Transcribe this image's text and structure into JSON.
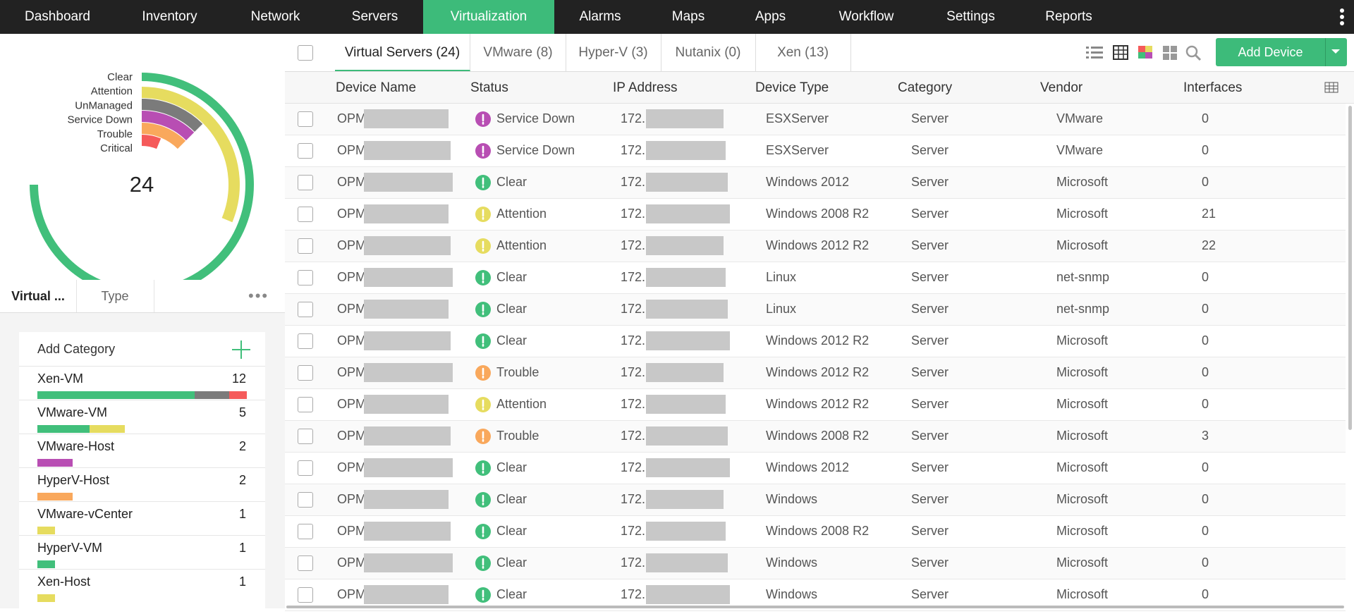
{
  "nav": {
    "items": [
      "Dashboard",
      "Inventory",
      "Network",
      "Servers",
      "Virtualization",
      "Alarms",
      "Maps",
      "Apps",
      "Workflow",
      "Settings",
      "Reports"
    ],
    "active": 4
  },
  "status_summary": {
    "total": 24,
    "items": [
      {
        "label": "Clear",
        "color": "#41bf7b",
        "value": 12
      },
      {
        "label": "Attention",
        "color": "#e6dc5f",
        "value": 5
      },
      {
        "label": "UnManaged",
        "color": "#7b7b7b",
        "value": 2
      },
      {
        "label": "Service Down",
        "color": "#b84eb3",
        "value": 2
      },
      {
        "label": "Trouble",
        "color": "#f9a85c",
        "value": 2
      },
      {
        "label": "Critical",
        "color": "#f55a5a",
        "value": 1
      }
    ]
  },
  "side_tabs": [
    "Virtual ...",
    "Type"
  ],
  "categories": {
    "title": "Add Category",
    "items": [
      {
        "name": "Xen-VM",
        "count": 12,
        "segments": [
          {
            "color": "#41bf7b",
            "value": 9
          },
          {
            "color": "#7b7b7b",
            "value": 2
          },
          {
            "color": "#f55a5a",
            "value": 1
          }
        ]
      },
      {
        "name": "VMware-VM",
        "count": 5,
        "segments": [
          {
            "color": "#41bf7b",
            "value": 3
          },
          {
            "color": "#e6dc5f",
            "value": 2
          }
        ]
      },
      {
        "name": "VMware-Host",
        "count": 2,
        "segments": [
          {
            "color": "#b84eb3",
            "value": 2
          }
        ]
      },
      {
        "name": "HyperV-Host",
        "count": 2,
        "segments": [
          {
            "color": "#f9a85c",
            "value": 2
          }
        ]
      },
      {
        "name": "VMware-vCenter",
        "count": 1,
        "segments": [
          {
            "color": "#e6dc5f",
            "value": 1
          }
        ]
      },
      {
        "name": "HyperV-VM",
        "count": 1,
        "segments": [
          {
            "color": "#41bf7b",
            "value": 1
          }
        ]
      },
      {
        "name": "Xen-Host",
        "count": 1,
        "segments": [
          {
            "color": "#e6dc5f",
            "value": 1
          }
        ]
      }
    ]
  },
  "tabs": [
    "Virtual Servers (24)",
    "VMware (8)",
    "Hyper-V (3)",
    "Nutanix (0)",
    "Xen (13)"
  ],
  "button": "Add Device",
  "table": {
    "columns": [
      "Device Name",
      "Status",
      "IP Address",
      "Device Type",
      "Category",
      "Vendor",
      "Interfaces"
    ],
    "rows": [
      [
        "OPM",
        "Service Down",
        "172.",
        "ESXServer",
        "Server",
        "VMware",
        0
      ],
      [
        "OPM",
        "Service Down",
        "172.",
        "ESXServer",
        "Server",
        "VMware",
        0
      ],
      [
        "OPM",
        "Clear",
        "172.",
        "Windows 2012",
        "Server",
        "Microsoft",
        0
      ],
      [
        "OPM",
        "Attention",
        "172.",
        "Windows 2008 R2",
        "Server",
        "Microsoft",
        21
      ],
      [
        "OPM",
        "Attention",
        "172.",
        "Windows 2012 R2",
        "Server",
        "Microsoft",
        22
      ],
      [
        "OPM",
        "Clear",
        "172.",
        "Linux",
        "Server",
        "net-snmp",
        0
      ],
      [
        "OPM",
        "Clear",
        "172.",
        "Linux",
        "Server",
        "net-snmp",
        0
      ],
      [
        "OPM",
        "Clear",
        "172.",
        "Windows 2012 R2",
        "Server",
        "Microsoft",
        0
      ],
      [
        "OPM",
        "Trouble",
        "172.",
        "Windows 2012 R2",
        "Server",
        "Microsoft",
        0
      ],
      [
        "OPM",
        "Attention",
        "172.",
        "Windows 2012 R2",
        "Server",
        "Microsoft",
        0
      ],
      [
        "OPM",
        "Trouble",
        "172.",
        "Windows 2008 R2",
        "Server",
        "Microsoft",
        3
      ],
      [
        "OPM",
        "Clear",
        "172.",
        "Windows 2012",
        "Server",
        "Microsoft",
        0
      ],
      [
        "OPM",
        "Clear",
        "172.",
        "Windows",
        "Server",
        "Microsoft",
        0
      ],
      [
        "OPM",
        "Clear",
        "172.",
        "Windows 2008 R2",
        "Server",
        "Microsoft",
        0
      ],
      [
        "OPM",
        "Clear",
        "172.",
        "Windows",
        "Server",
        "Microsoft",
        0
      ],
      [
        "OPM",
        "Clear",
        "172.",
        "Windows",
        "Server",
        "Microsoft",
        0
      ]
    ]
  }
}
